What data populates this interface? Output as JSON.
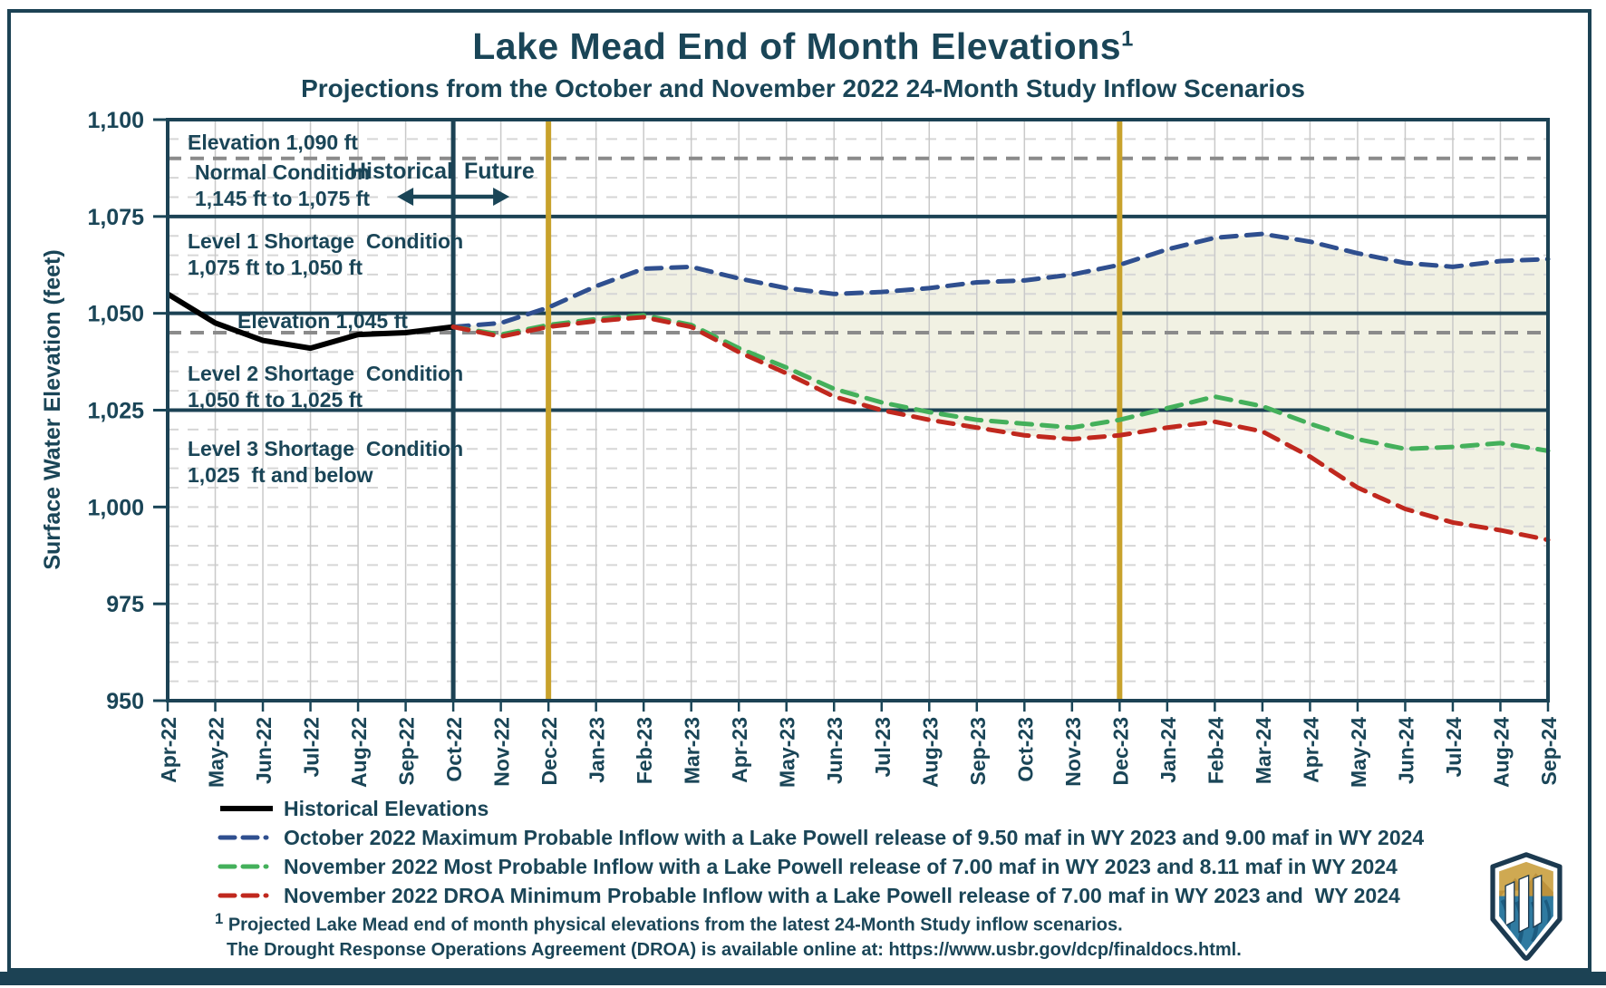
{
  "header": {
    "title": "Lake Mead End of Month Elevations",
    "title_superscript": "1",
    "subtitle": "Projections from the October and November 2022 24-Month Study Inflow Scenarios"
  },
  "y_axis": {
    "label": "Surface Water Elevation (feet)",
    "tick_labels": [
      "1,100",
      "1,075",
      "1,050",
      "1,025",
      "1,000",
      "975",
      "950"
    ],
    "tick_values": [
      1100,
      1075,
      1050,
      1025,
      1000,
      975,
      950
    ]
  },
  "annotations": {
    "elevation_1090": "Elevation 1,090 ft",
    "normal_condition": "Normal Condition\n1,145 ft to 1,075 ft",
    "historical_label": "Historical",
    "future_label": "Future",
    "level1_shortage": "Level 1 Shortage  Condition\n1,075 ft to 1,050 ft",
    "elevation_1045": "Elevation 1,045 ft",
    "level2_shortage": "Level 2 Shortage  Condition\n1,050 ft to 1,025 ft",
    "level3_shortage": "Level 3 Shortage  Condition\n1,025  ft and below"
  },
  "footnotes": {
    "superscript": "1",
    "line1": " Projected Lake Mead end of month physical elevations from the latest 24-Month Study inflow scenarios.",
    "line2": "The Drought Response Operations Agreement (DROA) is available online at: https://www.usbr.gov/dcp/finaldocs.html."
  },
  "logo": {
    "name": "Bureau of Reclamation shield logo"
  },
  "chart_data": {
    "type": "line",
    "title": "Lake Mead End of Month Elevations",
    "xlabel": "",
    "ylabel": "Surface Water Elevation (feet)",
    "ylim": [
      950,
      1100
    ],
    "grid": "minor dashed horizontal every 5 ft, solid vertical monthly",
    "legend_position": "below chart",
    "x": [
      "Apr-22",
      "May-22",
      "Jun-22",
      "Jul-22",
      "Aug-22",
      "Sep-22",
      "Oct-22",
      "Nov-22",
      "Dec-22",
      "Jan-23",
      "Feb-23",
      "Mar-23",
      "Apr-23",
      "May-23",
      "Jun-23",
      "Jul-23",
      "Aug-23",
      "Sep-23",
      "Oct-23",
      "Nov-23",
      "Dec-23",
      "Jan-24",
      "Feb-24",
      "Mar-24",
      "Apr-24",
      "May-24",
      "Jun-24",
      "Jul-24",
      "Aug-24",
      "Sep-24"
    ],
    "series": [
      {
        "name": "Historical Elevations",
        "color": "#000000",
        "line_style": "solid",
        "start_index": 0,
        "values": [
          1055,
          1047.5,
          1043,
          1041,
          1044.5,
          1045,
          1046.5
        ]
      },
      {
        "name": "October 2022 Maximum Probable Inflow with a Lake Powell release of 9.50 maf in WY 2023 and 9.00 maf in WY 2024",
        "color": "#2F4F8F",
        "line_style": "dashed",
        "start_index": 6,
        "values": [
          1046.5,
          1047.5,
          1051.5,
          1057,
          1061.5,
          1062,
          1059,
          1056.5,
          1055,
          1055.5,
          1056.5,
          1058,
          1058.5,
          1060,
          1062.5,
          1066.5,
          1069.5,
          1070.5,
          1068.5,
          1065.5,
          1063,
          1062,
          1063.5,
          1064
        ]
      },
      {
        "name": "November 2022 Most Probable Inflow with a Lake Powell release of 7.00 maf in WY 2023 and 8.11 maf in WY 2024",
        "color": "#44B05B",
        "line_style": "dashed",
        "start_index": 6,
        "values": [
          1046.5,
          1044.5,
          1047,
          1048.5,
          1049.5,
          1047,
          1041,
          1036,
          1030.5,
          1027,
          1024.5,
          1022.5,
          1021.5,
          1020.5,
          1022.5,
          1025.5,
          1028.5,
          1026,
          1021.5,
          1017.5,
          1015,
          1015.5,
          1016.5,
          1014.5
        ]
      },
      {
        "name": "November 2022 DROA Minimum Probable Inflow with a Lake Powell release of 7.00 maf in WY 2023 and  WY 2024",
        "color": "#C0281E",
        "line_style": "dashed",
        "start_index": 6,
        "values": [
          1046.5,
          1044,
          1046.5,
          1048,
          1049,
          1046.5,
          1040,
          1034.5,
          1028.5,
          1025,
          1022.5,
          1020.5,
          1018.5,
          1017.5,
          1018.5,
          1020.5,
          1022,
          1019.5,
          1013,
          1005,
          999.5,
          996,
          994,
          991.5
        ]
      }
    ],
    "envelope_fill": {
      "between": [
        "October 2022 Maximum Probable Inflow",
        "November 2022 DROA Minimum Probable Inflow"
      ],
      "color": "#EFF0E0"
    },
    "reference_lines": {
      "solid_values": [
        1075,
        1050,
        1025
      ],
      "dashed_gray_values": [
        1090,
        1045
      ]
    },
    "vertical_lines": [
      {
        "month": "Oct-22",
        "meaning": "historical-future divider",
        "color": "#1C4254"
      },
      {
        "month": "Dec-22",
        "color": "#C8A22C"
      },
      {
        "month": "Dec-23",
        "color": "#C8A22C"
      }
    ]
  }
}
